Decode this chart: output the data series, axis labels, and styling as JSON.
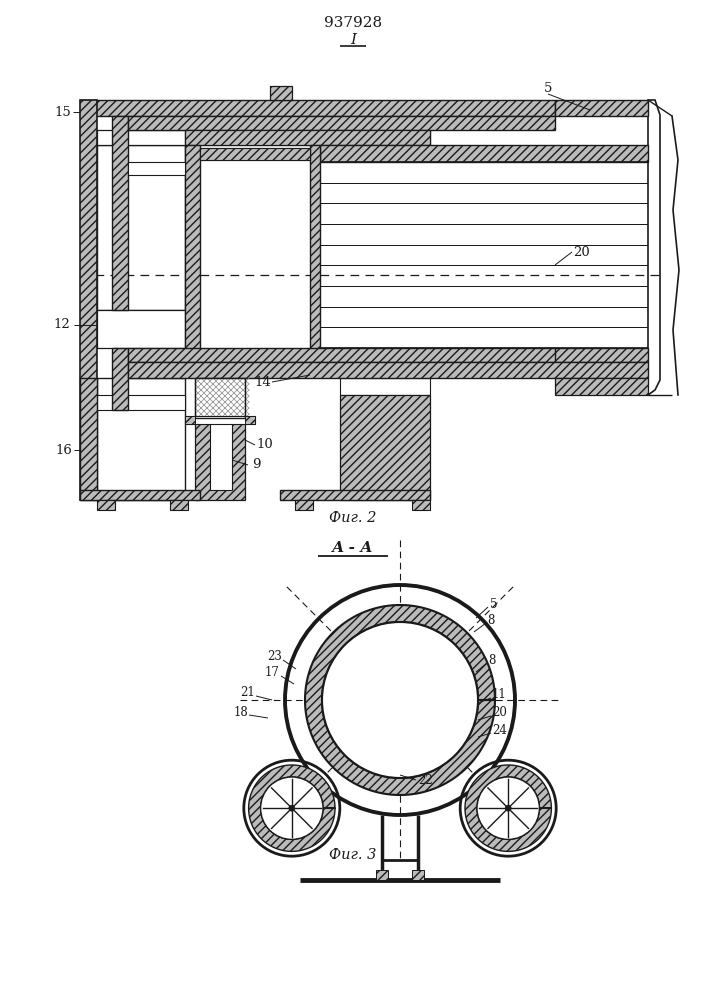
{
  "patent_number": "937928",
  "fig1_label": "I",
  "fig2_caption": "Фиг. 2",
  "fig3_caption": "Фиг. 3",
  "section_label": "А - А",
  "bg_color": "#ffffff",
  "lc": "#1a1a1a",
  "hc": "#bbbbbb"
}
